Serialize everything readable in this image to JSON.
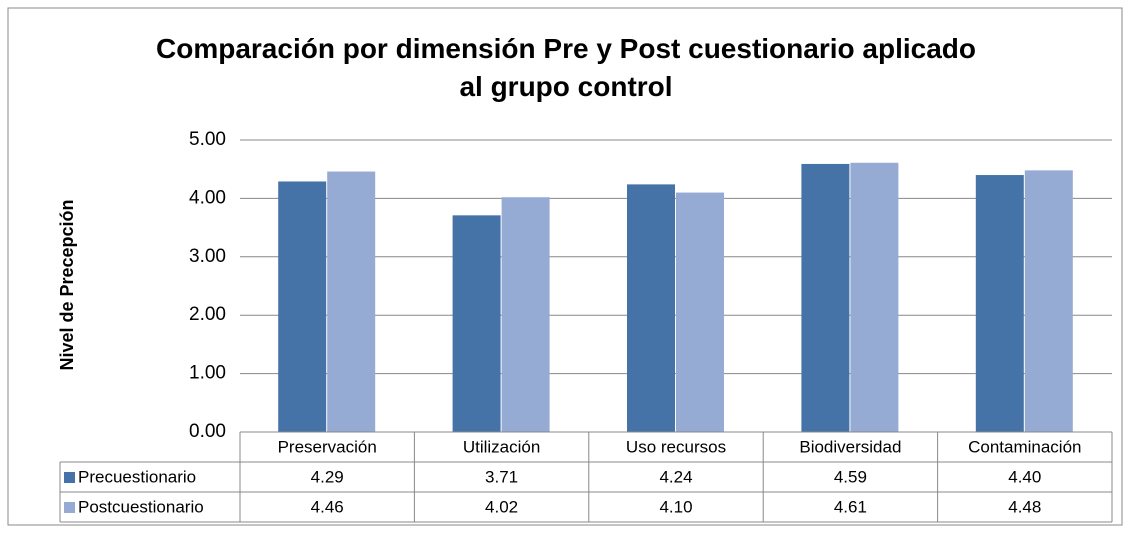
{
  "chart_data": {
    "type": "bar",
    "title": "Comparación por dimensión Pre y Post cuestionario aplicado al grupo control",
    "y_label": "Nivel de Precepción",
    "categories": [
      "Preservación",
      "Utilización",
      "Uso recursos",
      "Biodiversidad",
      "Contaminación"
    ],
    "series": [
      {
        "name": "Precuestionario",
        "color": "#4573a7",
        "values": [
          4.29,
          3.71,
          4.24,
          4.59,
          4.4
        ],
        "value_labels": [
          "4.29",
          "3.71",
          "4.24",
          "4.59",
          "4.40"
        ]
      },
      {
        "name": "Postcuestionario",
        "color": "#95abd3",
        "values": [
          4.46,
          4.02,
          4.1,
          4.61,
          4.48
        ],
        "value_labels": [
          "4.46",
          "4.02",
          "4.10",
          "4.61",
          "4.48"
        ]
      }
    ],
    "ylim": [
      0,
      5
    ],
    "yticks": [
      {
        "value": 0,
        "label": "0.00"
      },
      {
        "value": 1,
        "label": "1.00"
      },
      {
        "value": 2,
        "label": "2.00"
      },
      {
        "value": 3,
        "label": "3.00"
      },
      {
        "value": 4,
        "label": "4.00"
      },
      {
        "value": 5,
        "label": "5.00"
      }
    ],
    "grid": true
  }
}
